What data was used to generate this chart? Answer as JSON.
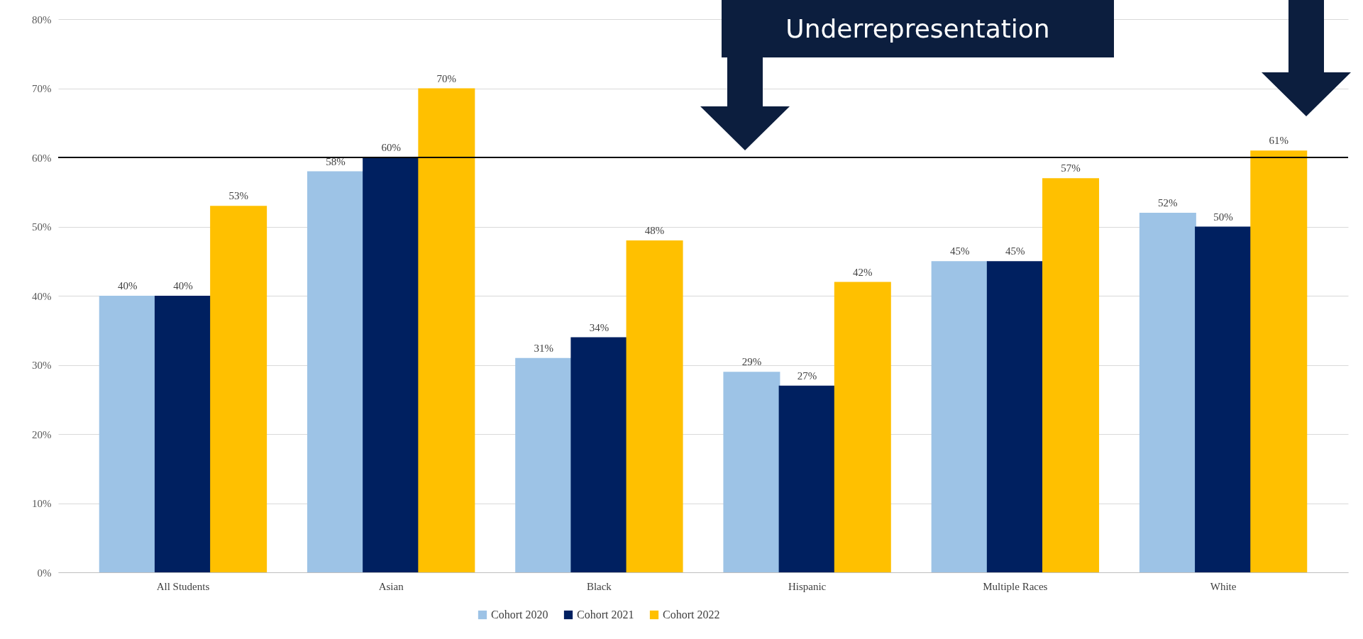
{
  "chart_data": {
    "type": "bar",
    "categories": [
      "All Students",
      "Asian",
      "Black",
      "Hispanic",
      "Multiple Races",
      "White"
    ],
    "series": [
      {
        "name": "Cohort 2020",
        "color": "#9dc3e6",
        "values": [
          40,
          58,
          31,
          29,
          45,
          52
        ],
        "value_labels": [
          "40%",
          "58%",
          "31%",
          "29%",
          "45%",
          "52%"
        ]
      },
      {
        "name": "Cohort 2021",
        "color": "#002060",
        "values": [
          40,
          60,
          34,
          27,
          45,
          50
        ],
        "value_labels": [
          "40%",
          "60%",
          "34%",
          "27%",
          "45%",
          "50%"
        ]
      },
      {
        "name": "Cohort 2022",
        "color": "#ffc000",
        "values": [
          53,
          70,
          48,
          42,
          57,
          61
        ],
        "value_labels": [
          "53%",
          "70%",
          "48%",
          "42%",
          "57%",
          "61%"
        ]
      }
    ],
    "ylim": [
      0,
      80
    ],
    "yticks": [
      {
        "value": 0,
        "label": "0%"
      },
      {
        "value": 10,
        "label": "10%"
      },
      {
        "value": 20,
        "label": "20%"
      },
      {
        "value": 30,
        "label": "30%"
      },
      {
        "value": 40,
        "label": "40%"
      },
      {
        "value": 50,
        "label": "50%"
      },
      {
        "value": 60,
        "label": "60%"
      },
      {
        "value": 70,
        "label": "70%"
      },
      {
        "value": 80,
        "label": "80%"
      }
    ],
    "ref_lines": [
      {
        "axis": "y",
        "value": 60,
        "color": "#000000"
      }
    ],
    "annotations": [
      "Underrepresentation"
    ],
    "grid": "y",
    "legend": "bottom"
  }
}
